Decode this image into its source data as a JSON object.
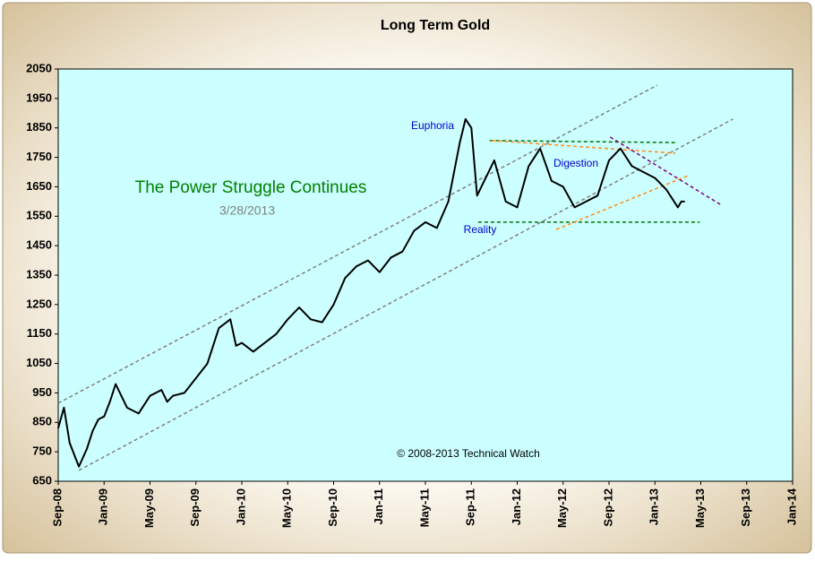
{
  "chart_data": {
    "type": "line",
    "title": "Long Term Gold",
    "color": "#000000",
    "x": [
      0,
      0.5,
      1,
      1.5,
      1.8,
      2.5,
      3,
      3.5,
      4,
      4.5,
      5,
      5.5,
      6,
      6.5,
      7,
      8,
      9,
      9.5,
      10,
      11,
      12,
      13,
      14,
      15,
      15.5,
      16,
      17,
      18,
      19,
      20,
      21,
      22,
      23,
      24,
      25,
      26,
      27,
      28,
      29,
      30,
      31,
      32,
      33,
      34,
      35,
      35.5,
      36,
      36.5,
      37,
      38,
      39,
      40,
      41,
      42,
      43,
      44,
      45,
      46,
      47,
      48,
      49,
      50,
      51,
      52,
      53,
      54,
      54.3,
      54.6
    ],
    "values": [
      830,
      900,
      780,
      730,
      700,
      760,
      820,
      860,
      870,
      920,
      980,
      940,
      900,
      890,
      880,
      940,
      960,
      920,
      940,
      950,
      1000,
      1050,
      1170,
      1200,
      1110,
      1120,
      1090,
      1120,
      1150,
      1200,
      1240,
      1200,
      1190,
      1250,
      1340,
      1380,
      1400,
      1360,
      1410,
      1430,
      1500,
      1530,
      1510,
      1600,
      1800,
      1880,
      1850,
      1620,
      1660,
      1740,
      1600,
      1580,
      1720,
      1780,
      1670,
      1650,
      1580,
      1600,
      1620,
      1740,
      1780,
      1720,
      1700,
      1680,
      1640,
      1580,
      1600,
      1600
    ],
    "xlim": [
      0,
      64
    ],
    "xticks": [
      {
        "value": 0,
        "label": "Sep-08"
      },
      {
        "value": 4,
        "label": "Jan-09"
      },
      {
        "value": 8,
        "label": "May-09"
      },
      {
        "value": 12,
        "label": "Sep-09"
      },
      {
        "value": 16,
        "label": "Jan-10"
      },
      {
        "value": 20,
        "label": "May-10"
      },
      {
        "value": 24,
        "label": "Sep-10"
      },
      {
        "value": 28,
        "label": "Jan-11"
      },
      {
        "value": 32,
        "label": "May-11"
      },
      {
        "value": 36,
        "label": "Sep-11"
      },
      {
        "value": 40,
        "label": "Jan-12"
      },
      {
        "value": 44,
        "label": "May-12"
      },
      {
        "value": 48,
        "label": "Sep-12"
      },
      {
        "value": 52,
        "label": "Jan-13"
      },
      {
        "value": 56,
        "label": "May-13"
      },
      {
        "value": 60,
        "label": "Sep-13"
      },
      {
        "value": 64,
        "label": "Jan-14"
      }
    ],
    "ylim": [
      650,
      2050
    ],
    "yticks": [
      650,
      750,
      850,
      950,
      1050,
      1150,
      1250,
      1350,
      1450,
      1550,
      1650,
      1750,
      1850,
      1950,
      2050
    ],
    "trendlines": [
      {
        "x": [
          0,
          52.2
        ],
        "values": [
          915,
          1995
        ],
        "color": "#808080"
      },
      {
        "x": [
          1.8,
          58.8
        ],
        "values": [
          687,
          1880
        ],
        "color": "#808080"
      },
      {
        "x": [
          37.6,
          53.8
        ],
        "values": [
          1807,
          1800
        ],
        "color": "#007700"
      },
      {
        "x": [
          36.6,
          55.9
        ],
        "values": [
          1530,
          1530
        ],
        "color": "#007700"
      },
      {
        "x": [
          37.8,
          53.8
        ],
        "values": [
          1807,
          1764
        ],
        "color": "#ff8c1a"
      },
      {
        "x": [
          43.4,
          54.9
        ],
        "values": [
          1505,
          1688
        ],
        "color": "#ff8c1a"
      },
      {
        "x": [
          48.1,
          57.7
        ],
        "values": [
          1819,
          1590
        ],
        "color": "#800080"
      }
    ],
    "annotations": [
      {
        "text": "Euphoria",
        "color": "#0000cc"
      },
      {
        "text": "Digestion",
        "color": "#0000cc"
      },
      {
        "text": "Reality",
        "color": "#0000cc"
      },
      {
        "text": "The Power Struggle Continues",
        "color": "#008000"
      },
      {
        "text": "3/28/2013",
        "color": "#808080"
      },
      {
        "text": "© 2008-2013 Technical Watch",
        "color": "#000000"
      }
    ]
  }
}
